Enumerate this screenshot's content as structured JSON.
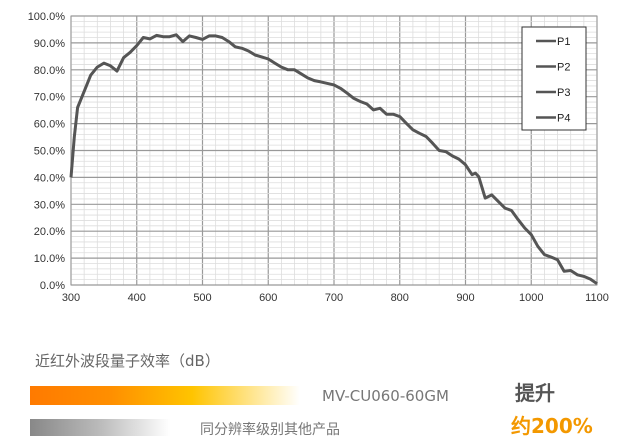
{
  "chart_data": {
    "type": "line",
    "title": "",
    "xlabel": "",
    "ylabel": "",
    "xlim": [
      300,
      1100
    ],
    "ylim": [
      0,
      100
    ],
    "grid": true,
    "legend_position": "top-right",
    "x_ticks": [
      "300",
      "400",
      "500",
      "600",
      "700",
      "800",
      "900",
      "1000",
      "1100"
    ],
    "y_ticks": [
      "0.0%",
      "10.0%",
      "20.0%",
      "30.0%",
      "40.0%",
      "50.0%",
      "60.0%",
      "70.0%",
      "80.0%",
      "90.0%",
      "100.0%"
    ],
    "legend": [
      "P1",
      "P2",
      "P3",
      "P4"
    ],
    "line_color": "#555555",
    "x": [
      300,
      305,
      310,
      320,
      330,
      340,
      350,
      360,
      370,
      380,
      390,
      400,
      410,
      420,
      430,
      440,
      450,
      460,
      470,
      480,
      490,
      500,
      510,
      520,
      530,
      540,
      550,
      560,
      570,
      580,
      590,
      600,
      610,
      620,
      630,
      640,
      650,
      660,
      670,
      680,
      700,
      710,
      720,
      730,
      740,
      750,
      760,
      770,
      780,
      790,
      800,
      810,
      820,
      830,
      840,
      850,
      860,
      870,
      880,
      890,
      900,
      910,
      915,
      920,
      930,
      940,
      950,
      960,
      970,
      980,
      990,
      1000,
      1010,
      1020,
      1030,
      1040,
      1050,
      1060,
      1070,
      1080,
      1090,
      1100
    ],
    "y": [
      40,
      55,
      66,
      72,
      78,
      81,
      82.5,
      81.5,
      79.5,
      84.5,
      86.5,
      89,
      92,
      91.5,
      92.8,
      92.3,
      92.3,
      93,
      90.5,
      92.6,
      92,
      91.3,
      92.6,
      92.6,
      92,
      90.5,
      88.5,
      88,
      87,
      85.5,
      84.8,
      84,
      82.5,
      81,
      80,
      80,
      78.5,
      77,
      76,
      75.5,
      74.4,
      73.1,
      71.3,
      69.4,
      68.2,
      67.3,
      65.1,
      65.7,
      63.5,
      63.5,
      62.6,
      60.1,
      57.7,
      56.4,
      55.2,
      52.7,
      50,
      49.6,
      48,
      46.8,
      44.7,
      41,
      41.6,
      40.3,
      32.3,
      33.5,
      31,
      28.6,
      27.7,
      24.3,
      21.2,
      18.7,
      14.4,
      11.3,
      10.4,
      9.4,
      5.1,
      5.4,
      3.8,
      3.2,
      2.2,
      0.5
    ]
  },
  "caption": "近红外波段量子效率（dB）",
  "bars": {
    "product_label": "MV-CU060-60GM",
    "other_label": "同分辨率级别其他产品",
    "product_color": "#ff7a00",
    "other_color": "#888888"
  },
  "improvement": {
    "label": "提升",
    "value": "约200%",
    "color": "#f39800"
  }
}
